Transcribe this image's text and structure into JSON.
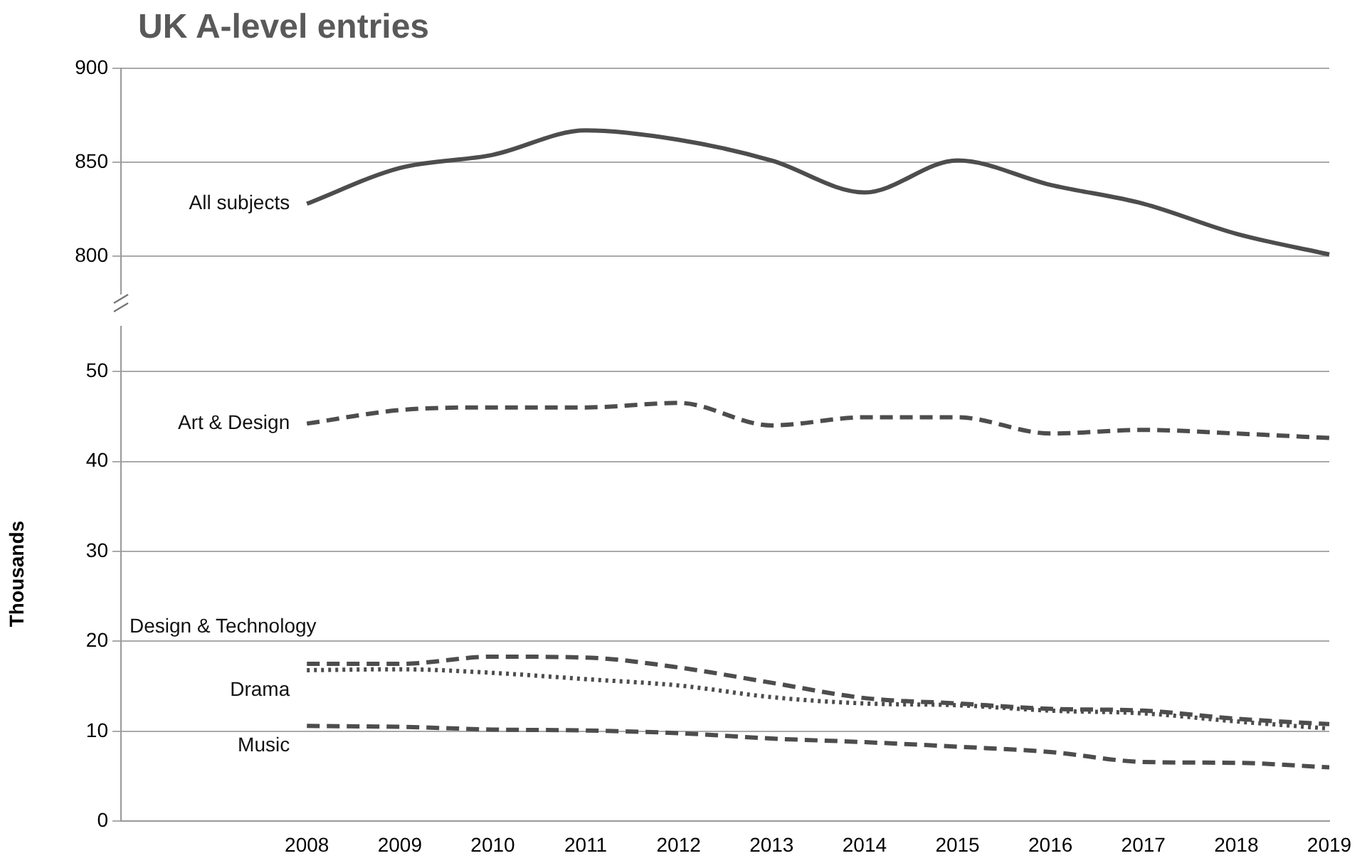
{
  "chart_data": [
    {
      "type": "line",
      "title": "UK A-level entries",
      "categories": [
        null,
        null,
        "2008",
        "2009",
        "2010",
        "2011",
        "2012",
        "2013",
        "2014",
        "2015",
        "2016",
        "2017",
        "2018",
        "2019"
      ],
      "ylim": [
        780,
        900
      ],
      "yticks": [
        800,
        850,
        900
      ],
      "grid": "y",
      "tick_labels": "y",
      "legend": false,
      "marker": "none",
      "series": [
        {
          "name": "All subjects",
          "color": "#4d4d4d",
          "line_style": "solid",
          "values": [
            null,
            null,
            828,
            847,
            854,
            867,
            862,
            851,
            834,
            851,
            838,
            828,
            812,
            801
          ]
        }
      ]
    },
    {
      "type": "line",
      "ylabel": "Thousands",
      "categories": [
        null,
        null,
        "2008",
        "2009",
        "2010",
        "2011",
        "2012",
        "2013",
        "2014",
        "2015",
        "2016",
        "2017",
        "2018",
        "2019"
      ],
      "ylim": [
        0,
        55
      ],
      "yticks": [
        0,
        10,
        20,
        30,
        40,
        50
      ],
      "grid": "y",
      "legend": false,
      "marker": "none",
      "series": [
        {
          "name": "Art & Design",
          "color": "#4d4d4d",
          "line_style": "dashed",
          "values": [
            null,
            null,
            44.2,
            45.7,
            46,
            46,
            46.5,
            44,
            44.9,
            44.9,
            43.1,
            43.5,
            43.1,
            42.6
          ]
        },
        {
          "name": "Design & Technology",
          "color": "#4d4d4d",
          "line_style": "dashed",
          "values": [
            null,
            null,
            17.5,
            17.5,
            18.3,
            18.2,
            17.1,
            15.4,
            13.7,
            13.1,
            12.5,
            12.3,
            11.4,
            10.8
          ]
        },
        {
          "name": "Drama",
          "color": "#4d4d4d",
          "line_style": "dotted",
          "values": [
            null,
            null,
            16.8,
            16.9,
            16.5,
            15.8,
            15.1,
            13.8,
            13.1,
            12.9,
            12.3,
            12,
            11.1,
            10.3
          ]
        },
        {
          "name": "Music",
          "color": "#4d4d4d",
          "line_style": "dashed",
          "values": [
            null,
            null,
            10.6,
            10.5,
            10.2,
            10.1,
            9.8,
            9.2,
            8.8,
            8.3,
            7.7,
            6.6,
            6.5,
            6.0
          ]
        }
      ]
    }
  ]
}
